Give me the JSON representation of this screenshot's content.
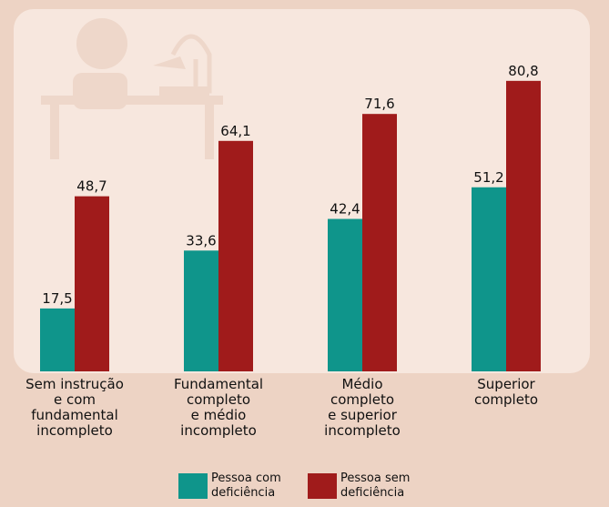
{
  "chart_data": {
    "type": "bar",
    "categories": [
      "Sem instrução\ne com\nfundamental\nincompleto",
      "Fundamental\ncompleto\ne médio\nincompleto",
      "Médio\ncompleto\ne superior\nincompleto",
      "Superior\ncompleto"
    ],
    "series": [
      {
        "name": "Pessoa com\ndeficiência",
        "color": "#0f958b",
        "values": [
          17.5,
          33.6,
          42.4,
          51.2
        ],
        "value_labels": [
          "17,5",
          "33,6",
          "42,4",
          "51,2"
        ]
      },
      {
        "name": "Pessoa sem\ndeficiência",
        "color": "#a01b1b",
        "values": [
          48.7,
          64.1,
          71.6,
          80.8
        ],
        "value_labels": [
          "48,7",
          "64,1",
          "71,6",
          "80,8"
        ]
      }
    ]
  }
}
